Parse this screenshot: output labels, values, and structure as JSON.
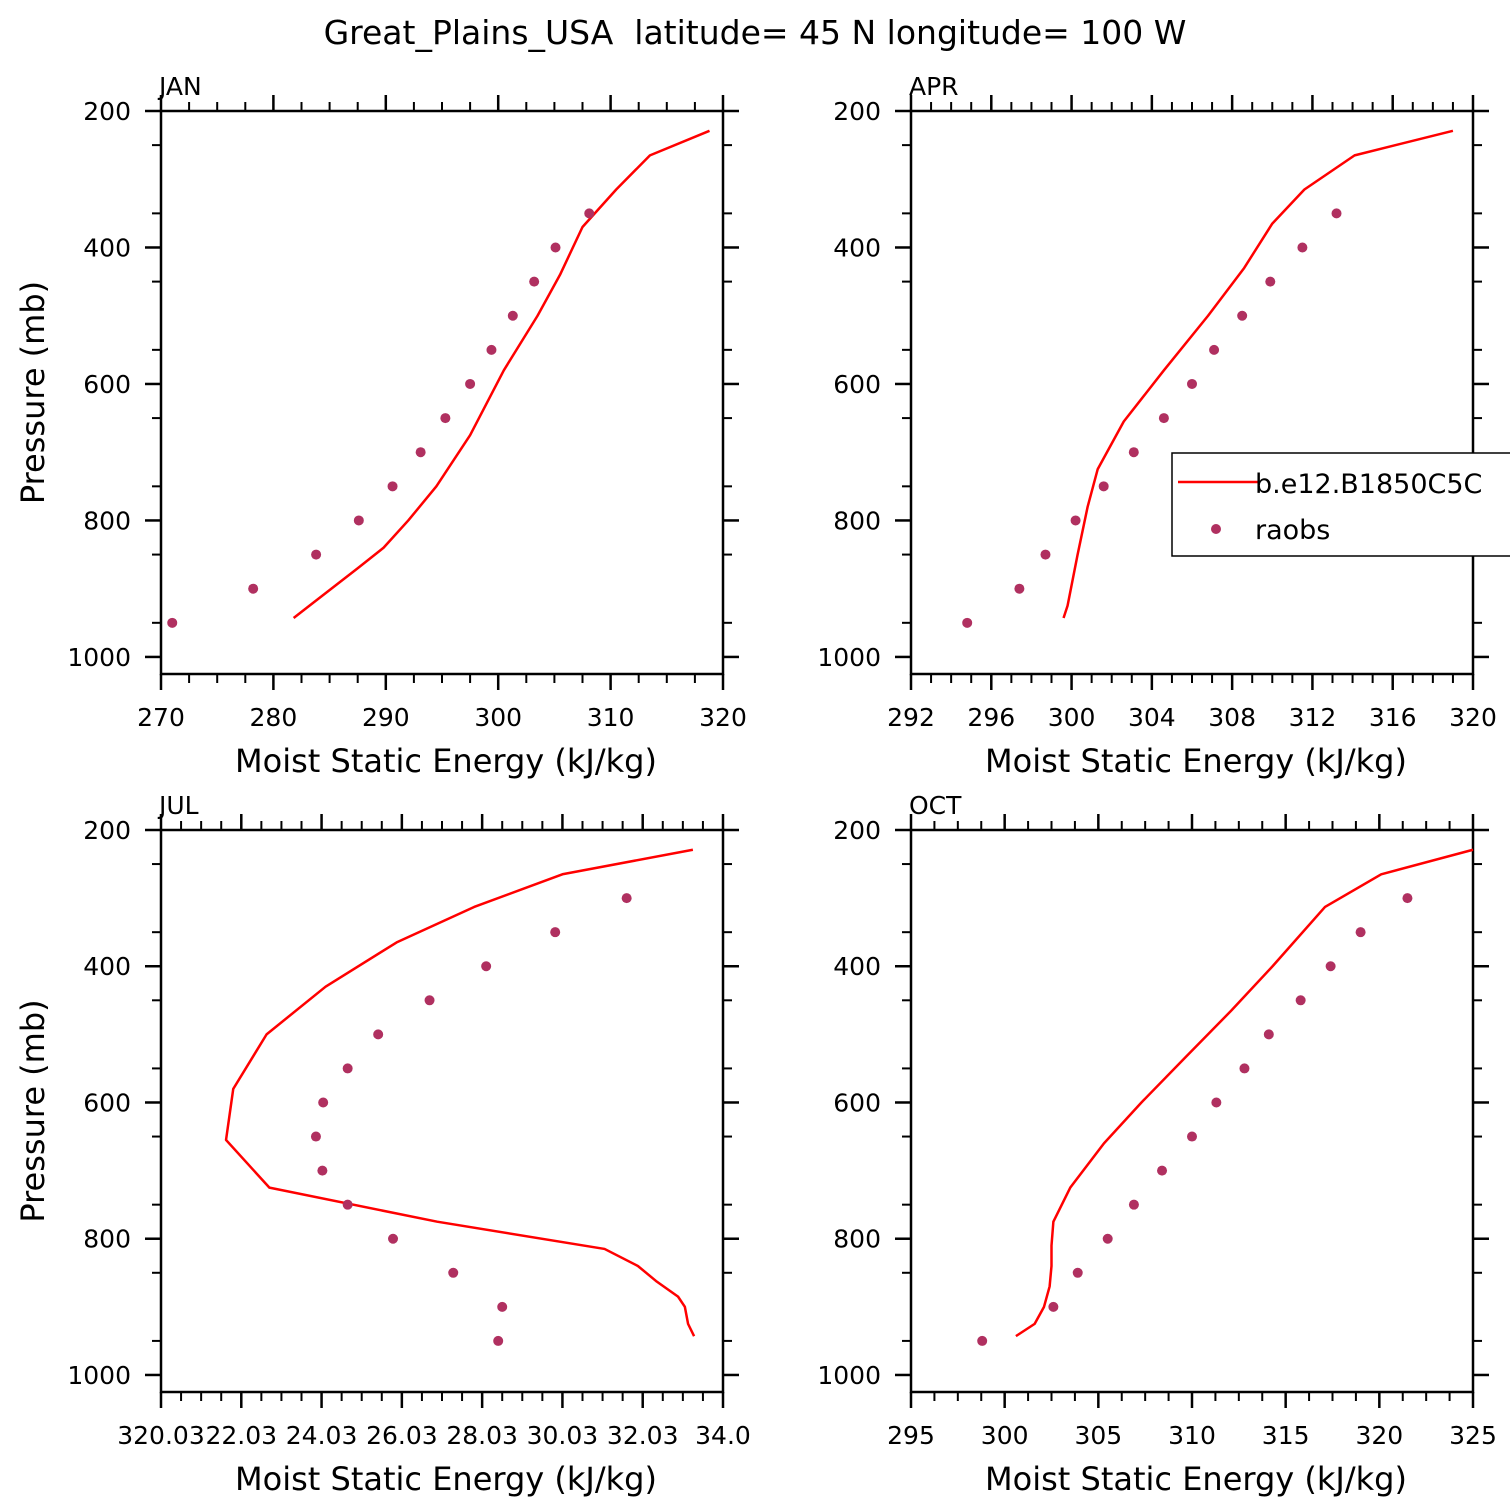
{
  "title": "Great_Plains_USA  latitude= 45 N longitude= 100 W",
  "colors": {
    "model": "#ff0000",
    "obs": "#b03060",
    "axis": "#000000"
  },
  "legend": {
    "model_label": "b.e12.B1850C5C",
    "obs_label": "raobs",
    "placement": "right-middle of APR panel"
  },
  "chart_data": [
    {
      "type": "line+scatter",
      "panel": "JAN",
      "xlabel": "Moist Static Energy (kJ/kg)",
      "ylabel": "Pressure (mb)",
      "xlim": [
        270,
        320
      ],
      "ylim": [
        1025,
        200
      ],
      "xticks": [
        270,
        280,
        290,
        300,
        310,
        320
      ],
      "xticklabels": [
        "270",
        "280",
        "290",
        "300",
        "310",
        "320"
      ],
      "yticks": [
        200,
        400,
        600,
        800,
        1000
      ],
      "yticklabels": [
        "200",
        "400",
        "600",
        "800",
        "1000"
      ],
      "series": [
        {
          "name": "b.e12.B1850C5C",
          "kind": "line",
          "x": [
            281.8,
            283.2,
            287.5,
            289.8,
            292.0,
            294.5,
            297.5,
            300.5,
            303.5,
            305.5,
            307.5,
            310.5,
            313.5,
            318.8
          ],
          "y": [
            943,
            925,
            870,
            840,
            800,
            750,
            675,
            580,
            500,
            440,
            370,
            315,
            265,
            229
          ]
        },
        {
          "name": "raobs",
          "kind": "scatter",
          "x": [
            271.0,
            278.2,
            283.8,
            287.6,
            290.6,
            293.1,
            295.3,
            297.5,
            299.4,
            301.3,
            303.2,
            305.1,
            308.1
          ],
          "y": [
            950,
            900,
            850,
            800,
            750,
            700,
            650,
            600,
            550,
            500,
            450,
            400,
            350
          ]
        }
      ]
    },
    {
      "type": "line+scatter",
      "panel": "APR",
      "xlabel": "Moist Static Energy (kJ/kg)",
      "ylabel": "",
      "xlim": [
        292,
        320
      ],
      "ylim": [
        1025,
        200
      ],
      "xticks": [
        292,
        296,
        300,
        304,
        308,
        312,
        316,
        320
      ],
      "xticklabels": [
        "292",
        "296",
        "300",
        "304",
        "308",
        "312",
        "316",
        "320"
      ],
      "yticks": [
        200,
        400,
        600,
        800,
        1000
      ],
      "yticklabels": [
        "200",
        "400",
        "600",
        "800",
        "1000"
      ],
      "series": [
        {
          "name": "b.e12.B1850C5C",
          "kind": "line",
          "x": [
            299.6,
            299.8,
            300.3,
            300.8,
            301.3,
            302.6,
            304.6,
            306.8,
            308.6,
            310.0,
            311.6,
            314.1,
            319.0
          ],
          "y": [
            943,
            925,
            850,
            780,
            725,
            655,
            580,
            500,
            430,
            365,
            315,
            265,
            229
          ]
        },
        {
          "name": "raobs",
          "kind": "scatter",
          "x": [
            294.8,
            297.4,
            298.7,
            300.2,
            301.6,
            303.1,
            304.6,
            306.0,
            307.1,
            308.5,
            309.9,
            311.5,
            313.2
          ],
          "y": [
            950,
            900,
            850,
            800,
            750,
            700,
            650,
            600,
            550,
            500,
            450,
            400,
            350
          ]
        }
      ]
    },
    {
      "type": "line+scatter",
      "panel": "JUL",
      "xlabel": "Moist Static Energy (kJ/kg)",
      "ylabel": "Pressure (mb)",
      "xlim": [
        320.03,
        334.03
      ],
      "ylim": [
        1025,
        200
      ],
      "xticks": [
        320.03,
        322.03,
        324.03,
        326.03,
        328.03,
        330.03,
        332.03,
        334.03
      ],
      "xticklabels": [
        "320.03",
        "22.03",
        "24.03",
        "26.03",
        "28.03",
        "30.03",
        "32.03",
        "34.0"
      ],
      "yticks": [
        200,
        400,
        600,
        800,
        1000
      ],
      "yticklabels": [
        "200",
        "400",
        "600",
        "800",
        "1000"
      ],
      "series": [
        {
          "name": "b.e12.B1850C5C",
          "kind": "line",
          "x": [
            333.31,
            333.16,
            333.08,
            332.91,
            332.36,
            331.91,
            331.08,
            326.91,
            322.73,
            321.65,
            321.83,
            322.66,
            324.13,
            325.9,
            327.83,
            330.03,
            333.28
          ],
          "y": [
            943,
            925,
            900,
            885,
            862,
            840,
            815,
            775,
            725,
            655,
            580,
            500,
            430,
            365,
            313,
            265,
            229
          ]
        },
        {
          "name": "raobs",
          "kind": "scatter",
          "x": [
            328.43,
            328.53,
            327.31,
            325.81,
            324.68,
            324.05,
            323.89,
            324.07,
            324.68,
            325.44,
            326.72,
            328.13,
            329.85,
            331.63
          ],
          "y": [
            950,
            900,
            850,
            800,
            750,
            700,
            650,
            600,
            550,
            500,
            450,
            400,
            350,
            300
          ]
        }
      ]
    },
    {
      "type": "line+scatter",
      "panel": "OCT",
      "xlabel": "Moist Static Energy (kJ/kg)",
      "ylabel": "",
      "xlim": [
        295,
        325
      ],
      "ylim": [
        1025,
        200
      ],
      "xticks": [
        295,
        300,
        305,
        310,
        315,
        320,
        325
      ],
      "xticklabels": [
        "295",
        "300",
        "305",
        "310",
        "315",
        "320",
        "325"
      ],
      "yticks": [
        200,
        400,
        600,
        800,
        1000
      ],
      "yticklabels": [
        "200",
        "400",
        "600",
        "800",
        "1000"
      ],
      "series": [
        {
          "name": "b.e12.B1850C5C",
          "kind": "line",
          "x": [
            300.6,
            301.6,
            302.1,
            302.4,
            302.5,
            302.5,
            302.6,
            303.5,
            305.3,
            307.3,
            309.6,
            312.1,
            314.3,
            317.1,
            320.1,
            325.0
          ],
          "y": [
            943,
            925,
            900,
            870,
            840,
            810,
            775,
            725,
            660,
            600,
            535,
            465,
            400,
            313,
            265,
            229
          ]
        },
        {
          "name": "raobs",
          "kind": "scatter",
          "x": [
            298.8,
            302.6,
            303.9,
            305.5,
            306.9,
            308.4,
            310.0,
            311.3,
            312.8,
            314.1,
            315.8,
            317.4,
            319.0,
            321.5
          ],
          "y": [
            950,
            900,
            850,
            800,
            750,
            700,
            650,
            600,
            550,
            500,
            450,
            400,
            350,
            300
          ]
        }
      ]
    }
  ]
}
